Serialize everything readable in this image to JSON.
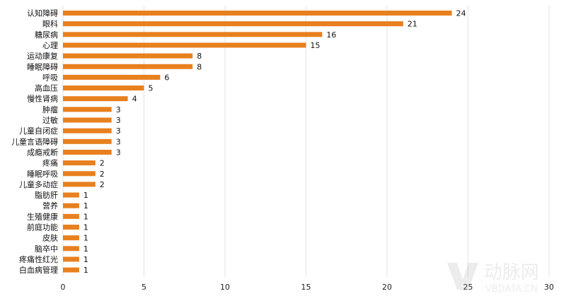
{
  "chart_data": {
    "type": "bar",
    "orientation": "horizontal",
    "categories": [
      "认知障碍",
      "眼科",
      "糖尿病",
      "心理",
      "运动康复",
      "睡眠障碍",
      "呼吸",
      "高血压",
      "慢性肾病",
      "肿瘤",
      "过敏",
      "儿童自闭症",
      "儿童言语障碍",
      "成瘾戒断",
      "疼痛",
      "睡眠呼吸",
      "儿童多动症",
      "脂肪肝",
      "营养",
      "生殖健康",
      "前庭功能",
      "皮肤",
      "脑卒中",
      "疼痛性红光",
      "白血病管理"
    ],
    "values": [
      24,
      21,
      16,
      15,
      8,
      8,
      6,
      5,
      4,
      3,
      3,
      3,
      3,
      3,
      2,
      2,
      2,
      1,
      1,
      1,
      1,
      1,
      1,
      1,
      1
    ],
    "x_ticks": [
      "0",
      "5",
      "10",
      "15",
      "20",
      "25",
      "30"
    ],
    "xlim": [
      0,
      30
    ],
    "grid": true,
    "bar_color": "#e8801e",
    "grid_color": "#e3e3e3"
  },
  "watermark": {
    "brand_cn": "动脉网",
    "brand_en": "VBDATA.CN"
  }
}
